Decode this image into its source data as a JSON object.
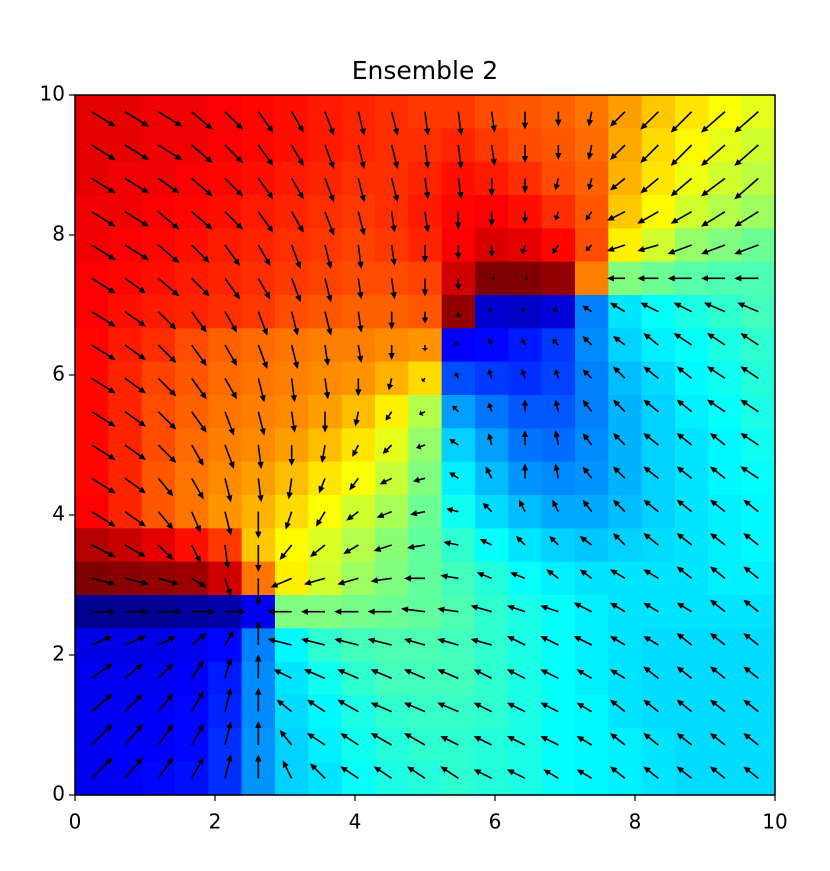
{
  "chart_data": {
    "type": "heatmap-quiver",
    "title": "Ensemble 2",
    "xlim": [
      0,
      10
    ],
    "ylim": [
      0,
      10
    ],
    "xticks": [
      0,
      2,
      4,
      6,
      8,
      10
    ],
    "yticks": [
      0,
      2,
      4,
      6,
      8,
      10
    ],
    "colormap": "jet",
    "zlim": [
      0,
      1
    ],
    "arrow_color": "#000000",
    "z": [
      [
        0.9,
        0.9,
        0.89,
        0.89,
        0.88,
        0.87,
        0.86,
        0.85,
        0.84,
        0.83,
        0.82,
        0.82,
        0.8,
        0.79,
        0.78,
        0.76,
        0.72,
        0.68,
        0.65,
        0.62,
        0.6
      ],
      [
        0.9,
        0.9,
        0.89,
        0.89,
        0.88,
        0.87,
        0.86,
        0.85,
        0.84,
        0.83,
        0.83,
        0.84,
        0.82,
        0.8,
        0.79,
        0.77,
        0.71,
        0.66,
        0.63,
        0.6,
        0.58
      ],
      [
        0.9,
        0.89,
        0.89,
        0.88,
        0.87,
        0.86,
        0.85,
        0.84,
        0.83,
        0.83,
        0.84,
        0.86,
        0.85,
        0.83,
        0.8,
        0.78,
        0.7,
        0.65,
        0.61,
        0.58,
        0.56
      ],
      [
        0.89,
        0.89,
        0.88,
        0.87,
        0.86,
        0.85,
        0.84,
        0.83,
        0.82,
        0.83,
        0.85,
        0.87,
        0.88,
        0.86,
        0.83,
        0.79,
        0.68,
        0.63,
        0.58,
        0.55,
        0.53
      ],
      [
        0.89,
        0.88,
        0.87,
        0.86,
        0.85,
        0.84,
        0.83,
        0.82,
        0.81,
        0.82,
        0.84,
        0.88,
        0.91,
        0.9,
        0.87,
        0.8,
        0.64,
        0.58,
        0.52,
        0.5,
        0.48
      ],
      [
        0.88,
        0.87,
        0.86,
        0.85,
        0.84,
        0.83,
        0.82,
        0.81,
        0.8,
        0.8,
        0.81,
        0.92,
        1.0,
        1.0,
        0.98,
        0.75,
        0.5,
        0.48,
        0.46,
        0.45,
        0.45
      ],
      [
        0.88,
        0.86,
        0.85,
        0.84,
        0.83,
        0.82,
        0.8,
        0.79,
        0.78,
        0.78,
        0.79,
        0.98,
        0.08,
        0.07,
        0.09,
        0.25,
        0.35,
        0.38,
        0.4,
        0.42,
        0.44
      ],
      [
        0.87,
        0.85,
        0.83,
        0.8,
        0.78,
        0.77,
        0.76,
        0.75,
        0.75,
        0.74,
        0.73,
        0.12,
        0.13,
        0.15,
        0.18,
        0.26,
        0.33,
        0.36,
        0.38,
        0.4,
        0.42
      ],
      [
        0.87,
        0.84,
        0.81,
        0.79,
        0.77,
        0.76,
        0.75,
        0.74,
        0.73,
        0.7,
        0.66,
        0.2,
        0.18,
        0.17,
        0.19,
        0.25,
        0.31,
        0.34,
        0.37,
        0.39,
        0.41
      ],
      [
        0.87,
        0.84,
        0.8,
        0.78,
        0.76,
        0.75,
        0.74,
        0.72,
        0.69,
        0.64,
        0.55,
        0.28,
        0.24,
        0.21,
        0.21,
        0.25,
        0.3,
        0.33,
        0.36,
        0.38,
        0.4
      ],
      [
        0.87,
        0.84,
        0.8,
        0.77,
        0.75,
        0.74,
        0.72,
        0.69,
        0.65,
        0.6,
        0.52,
        0.33,
        0.28,
        0.24,
        0.23,
        0.26,
        0.3,
        0.33,
        0.35,
        0.37,
        0.39
      ],
      [
        0.87,
        0.84,
        0.79,
        0.76,
        0.74,
        0.72,
        0.69,
        0.65,
        0.62,
        0.57,
        0.5,
        0.36,
        0.31,
        0.27,
        0.26,
        0.27,
        0.3,
        0.33,
        0.35,
        0.37,
        0.38
      ],
      [
        0.88,
        0.84,
        0.79,
        0.76,
        0.73,
        0.7,
        0.66,
        0.62,
        0.58,
        0.54,
        0.48,
        0.39,
        0.34,
        0.31,
        0.29,
        0.29,
        0.31,
        0.33,
        0.35,
        0.36,
        0.37
      ],
      [
        0.95,
        0.93,
        0.9,
        0.86,
        0.82,
        0.68,
        0.63,
        0.59,
        0.55,
        0.51,
        0.47,
        0.42,
        0.38,
        0.35,
        0.33,
        0.32,
        0.33,
        0.34,
        0.35,
        0.36,
        0.37
      ],
      [
        1.0,
        0.99,
        0.98,
        0.97,
        0.92,
        0.76,
        0.64,
        0.58,
        0.53,
        0.5,
        0.47,
        0.44,
        0.41,
        0.38,
        0.36,
        0.35,
        0.35,
        0.35,
        0.35,
        0.36,
        0.36
      ],
      [
        0.02,
        0.02,
        0.02,
        0.03,
        0.04,
        0.11,
        0.5,
        0.5,
        0.49,
        0.48,
        0.47,
        0.45,
        0.42,
        0.4,
        0.38,
        0.36,
        0.35,
        0.35,
        0.35,
        0.35,
        0.35
      ],
      [
        0.1,
        0.1,
        0.1,
        0.11,
        0.13,
        0.25,
        0.37,
        0.42,
        0.44,
        0.45,
        0.45,
        0.44,
        0.42,
        0.4,
        0.38,
        0.36,
        0.35,
        0.34,
        0.34,
        0.34,
        0.34
      ],
      [
        0.11,
        0.11,
        0.11,
        0.12,
        0.15,
        0.26,
        0.35,
        0.39,
        0.42,
        0.44,
        0.44,
        0.44,
        0.42,
        0.4,
        0.38,
        0.36,
        0.35,
        0.34,
        0.34,
        0.34,
        0.34
      ],
      [
        0.11,
        0.11,
        0.12,
        0.13,
        0.16,
        0.26,
        0.34,
        0.37,
        0.4,
        0.42,
        0.43,
        0.43,
        0.42,
        0.4,
        0.38,
        0.37,
        0.35,
        0.34,
        0.34,
        0.34,
        0.34
      ],
      [
        0.11,
        0.12,
        0.12,
        0.13,
        0.17,
        0.27,
        0.33,
        0.36,
        0.39,
        0.41,
        0.42,
        0.42,
        0.41,
        0.4,
        0.38,
        0.37,
        0.36,
        0.35,
        0.34,
        0.34,
        0.34
      ],
      [
        0.11,
        0.12,
        0.13,
        0.14,
        0.17,
        0.27,
        0.33,
        0.35,
        0.38,
        0.4,
        0.41,
        0.42,
        0.41,
        0.4,
        0.38,
        0.37,
        0.36,
        0.35,
        0.34,
        0.34,
        0.34
      ]
    ],
    "u": [
      [
        0.8,
        0.8,
        0.8,
        0.7,
        0.6,
        0.5,
        0.4,
        0.3,
        0.2,
        0.2,
        0.1,
        0.1,
        0.1,
        0.0,
        0.0,
        -0.1,
        -0.5,
        -0.6,
        -0.7,
        -0.8,
        -0.8
      ],
      [
        0.8,
        0.8,
        0.8,
        0.7,
        0.6,
        0.5,
        0.4,
        0.3,
        0.2,
        0.2,
        0.1,
        0.1,
        0.1,
        0.0,
        0.0,
        -0.1,
        -0.5,
        -0.6,
        -0.7,
        -0.8,
        -0.8
      ],
      [
        0.8,
        0.8,
        0.7,
        0.7,
        0.6,
        0.5,
        0.4,
        0.3,
        0.2,
        0.2,
        0.1,
        0.1,
        0.0,
        0.0,
        -0.1,
        -0.1,
        -0.5,
        -0.6,
        -0.7,
        -0.8,
        -0.8
      ],
      [
        0.8,
        0.8,
        0.7,
        0.7,
        0.6,
        0.5,
        0.4,
        0.3,
        0.2,
        0.1,
        0.1,
        0.0,
        0.0,
        0.0,
        -0.1,
        -0.2,
        -0.6,
        -0.7,
        -0.7,
        -0.8,
        -0.8
      ],
      [
        0.8,
        0.8,
        0.7,
        0.6,
        0.5,
        0.4,
        0.3,
        0.2,
        0.1,
        0.1,
        0.0,
        0.0,
        0.0,
        -0.1,
        -0.2,
        -0.2,
        -0.6,
        -0.7,
        -0.8,
        -0.8,
        -0.8
      ],
      [
        0.8,
        0.7,
        0.7,
        0.6,
        0.5,
        0.4,
        0.3,
        0.2,
        0.1,
        0.1,
        0.0,
        0.0,
        0.1,
        0.1,
        0.0,
        0.0,
        -0.6,
        -0.7,
        -0.8,
        -0.8,
        -0.8
      ],
      [
        0.8,
        0.7,
        0.6,
        0.5,
        0.4,
        0.3,
        0.2,
        0.2,
        0.1,
        0.0,
        0.0,
        0.0,
        -0.1,
        -0.1,
        -0.2,
        -0.3,
        -0.5,
        -0.6,
        -0.6,
        -0.7,
        -0.7
      ],
      [
        0.8,
        0.7,
        0.6,
        0.5,
        0.4,
        0.3,
        0.2,
        0.1,
        0.1,
        0.0,
        0.0,
        -0.1,
        -0.1,
        -0.1,
        -0.2,
        -0.3,
        -0.4,
        -0.5,
        -0.6,
        -0.6,
        -0.6
      ],
      [
        0.8,
        0.7,
        0.6,
        0.5,
        0.4,
        0.2,
        0.1,
        0.1,
        0.0,
        -0.1,
        -0.1,
        -0.1,
        -0.1,
        -0.1,
        -0.1,
        -0.3,
        -0.4,
        -0.5,
        -0.5,
        -0.6,
        -0.6
      ],
      [
        0.8,
        0.7,
        0.6,
        0.5,
        0.3,
        0.2,
        0.1,
        0.0,
        -0.1,
        -0.2,
        -0.2,
        -0.2,
        -0.1,
        0.0,
        -0.1,
        -0.3,
        -0.4,
        -0.5,
        -0.5,
        -0.6,
        -0.6
      ],
      [
        0.8,
        0.7,
        0.6,
        0.4,
        0.3,
        0.1,
        0.0,
        -0.1,
        -0.2,
        -0.3,
        -0.3,
        -0.3,
        -0.1,
        0.0,
        -0.1,
        -0.3,
        -0.4,
        -0.5,
        -0.5,
        -0.5,
        -0.6
      ],
      [
        0.8,
        0.7,
        0.5,
        0.4,
        0.2,
        0.1,
        -0.1,
        -0.2,
        -0.3,
        -0.4,
        -0.4,
        -0.3,
        -0.2,
        0.0,
        -0.1,
        -0.3,
        -0.4,
        -0.5,
        -0.5,
        -0.5,
        -0.6
      ],
      [
        0.8,
        0.7,
        0.5,
        0.3,
        0.2,
        0.0,
        -0.2,
        -0.3,
        -0.4,
        -0.5,
        -0.5,
        -0.4,
        -0.3,
        -0.2,
        -0.2,
        -0.3,
        -0.4,
        -0.5,
        -0.5,
        -0.5,
        -0.5
      ],
      [
        0.8,
        0.7,
        0.5,
        0.3,
        0.1,
        0.0,
        -0.4,
        -0.5,
        -0.5,
        -0.6,
        -0.6,
        -0.5,
        -0.4,
        -0.3,
        -0.3,
        -0.4,
        -0.4,
        -0.5,
        -0.5,
        -0.5,
        -0.5
      ],
      [
        0.8,
        0.8,
        0.7,
        0.5,
        0.2,
        0.0,
        -0.7,
        -0.7,
        -0.7,
        -0.7,
        -0.7,
        -0.6,
        -0.5,
        -0.5,
        -0.4,
        -0.4,
        -0.5,
        -0.5,
        -0.5,
        -0.5,
        -0.5
      ],
      [
        0.8,
        0.8,
        0.8,
        0.8,
        0.7,
        0.0,
        -0.8,
        -0.8,
        -0.8,
        -0.8,
        -0.8,
        -0.7,
        -0.7,
        -0.6,
        -0.6,
        -0.6,
        -0.5,
        -0.5,
        -0.5,
        -0.5,
        -0.5
      ],
      [
        0.7,
        0.7,
        0.6,
        0.5,
        0.3,
        0.0,
        -0.8,
        -0.8,
        -0.8,
        -0.8,
        -0.7,
        -0.7,
        -0.7,
        -0.6,
        -0.6,
        -0.6,
        -0.5,
        -0.5,
        -0.5,
        -0.5,
        -0.5
      ],
      [
        0.7,
        0.6,
        0.5,
        0.4,
        0.2,
        0.0,
        -0.6,
        -0.7,
        -0.7,
        -0.7,
        -0.7,
        -0.7,
        -0.6,
        -0.6,
        -0.6,
        -0.5,
        -0.5,
        -0.5,
        -0.5,
        -0.5,
        -0.5
      ],
      [
        0.7,
        0.6,
        0.5,
        0.4,
        0.2,
        0.0,
        -0.5,
        -0.6,
        -0.7,
        -0.7,
        -0.7,
        -0.7,
        -0.6,
        -0.6,
        -0.6,
        -0.5,
        -0.5,
        -0.5,
        -0.5,
        -0.5,
        -0.5
      ],
      [
        0.7,
        0.6,
        0.5,
        0.4,
        0.2,
        0.0,
        -0.4,
        -0.6,
        -0.6,
        -0.7,
        -0.7,
        -0.6,
        -0.6,
        -0.6,
        -0.6,
        -0.5,
        -0.5,
        -0.5,
        -0.5,
        -0.5,
        -0.5
      ],
      [
        0.7,
        0.6,
        0.5,
        0.4,
        0.2,
        0.0,
        -0.3,
        -0.5,
        -0.6,
        -0.6,
        -0.6,
        -0.6,
        -0.6,
        -0.6,
        -0.5,
        -0.5,
        -0.5,
        -0.5,
        -0.5,
        -0.5,
        -0.5
      ]
    ],
    "v": [
      [
        -0.5,
        -0.5,
        -0.5,
        -0.6,
        -0.6,
        -0.7,
        -0.7,
        -0.8,
        -0.8,
        -0.8,
        -0.8,
        -0.8,
        -0.7,
        -0.6,
        -0.5,
        -0.5,
        -0.5,
        -0.6,
        -0.7,
        -0.7,
        -0.7
      ],
      [
        -0.5,
        -0.5,
        -0.5,
        -0.6,
        -0.6,
        -0.7,
        -0.7,
        -0.8,
        -0.8,
        -0.8,
        -0.8,
        -0.8,
        -0.7,
        -0.6,
        -0.5,
        -0.5,
        -0.5,
        -0.6,
        -0.7,
        -0.7,
        -0.7
      ],
      [
        -0.5,
        -0.5,
        -0.5,
        -0.6,
        -0.6,
        -0.7,
        -0.7,
        -0.8,
        -0.8,
        -0.8,
        -0.7,
        -0.7,
        -0.6,
        -0.5,
        -0.4,
        -0.4,
        -0.4,
        -0.5,
        -0.6,
        -0.6,
        -0.7
      ],
      [
        -0.5,
        -0.5,
        -0.6,
        -0.6,
        -0.6,
        -0.7,
        -0.7,
        -0.8,
        -0.8,
        -0.7,
        -0.7,
        -0.6,
        -0.5,
        -0.4,
        -0.3,
        -0.3,
        -0.3,
        -0.4,
        -0.4,
        -0.5,
        -0.5
      ],
      [
        -0.5,
        -0.5,
        -0.6,
        -0.6,
        -0.7,
        -0.7,
        -0.8,
        -0.8,
        -0.8,
        -0.7,
        -0.6,
        -0.5,
        -0.4,
        -0.3,
        -0.3,
        -0.2,
        -0.2,
        -0.2,
        -0.3,
        -0.3,
        -0.3
      ],
      [
        -0.5,
        -0.5,
        -0.6,
        -0.6,
        -0.7,
        -0.7,
        -0.8,
        -0.8,
        -0.7,
        -0.7,
        -0.6,
        -0.4,
        0.0,
        0.0,
        0.0,
        0.0,
        0.0,
        0.0,
        0.0,
        0.0,
        0.0
      ],
      [
        -0.5,
        -0.5,
        -0.6,
        -0.7,
        -0.7,
        -0.8,
        -0.8,
        -0.8,
        -0.7,
        -0.6,
        -0.4,
        -0.2,
        0.1,
        0.1,
        0.1,
        0.2,
        0.3,
        0.3,
        0.3,
        0.3,
        0.3
      ],
      [
        -0.5,
        -0.5,
        -0.6,
        -0.7,
        -0.7,
        -0.8,
        -0.8,
        -0.7,
        -0.6,
        -0.5,
        -0.2,
        0.1,
        0.2,
        0.2,
        0.2,
        0.3,
        0.3,
        0.4,
        0.4,
        0.4,
        0.4
      ],
      [
        -0.5,
        -0.5,
        -0.6,
        -0.7,
        -0.7,
        -0.8,
        -0.8,
        -0.7,
        -0.6,
        -0.4,
        -0.1,
        0.2,
        0.3,
        0.3,
        0.3,
        0.3,
        0.4,
        0.4,
        0.4,
        0.4,
        0.4
      ],
      [
        -0.5,
        -0.5,
        -0.6,
        -0.7,
        -0.8,
        -0.8,
        -0.7,
        -0.7,
        -0.5,
        -0.3,
        -0.1,
        0.2,
        0.3,
        0.4,
        0.4,
        0.4,
        0.4,
        0.4,
        0.4,
        0.4,
        0.4
      ],
      [
        -0.5,
        -0.5,
        -0.6,
        -0.7,
        -0.8,
        -0.8,
        -0.7,
        -0.6,
        -0.4,
        -0.3,
        -0.1,
        0.2,
        0.4,
        0.5,
        0.5,
        0.4,
        0.4,
        0.4,
        0.4,
        0.4,
        0.4
      ],
      [
        -0.5,
        -0.5,
        -0.6,
        -0.7,
        -0.8,
        -0.8,
        -0.7,
        -0.5,
        -0.4,
        -0.2,
        -0.1,
        0.2,
        0.4,
        0.5,
        0.5,
        0.4,
        0.4,
        0.4,
        0.4,
        0.4,
        0.4
      ],
      [
        -0.5,
        -0.5,
        -0.6,
        -0.7,
        -0.8,
        -0.9,
        -0.6,
        -0.5,
        -0.3,
        -0.2,
        -0.1,
        0.1,
        0.3,
        0.4,
        0.4,
        0.4,
        0.4,
        0.4,
        0.4,
        0.4,
        0.4
      ],
      [
        -0.4,
        -0.4,
        -0.5,
        -0.6,
        -0.8,
        -0.9,
        -0.5,
        -0.4,
        -0.3,
        -0.2,
        -0.1,
        0.1,
        0.2,
        0.3,
        0.3,
        0.3,
        0.4,
        0.4,
        0.4,
        0.4,
        0.4
      ],
      [
        -0.2,
        -0.2,
        -0.2,
        -0.3,
        -0.6,
        -0.9,
        -0.3,
        -0.2,
        -0.2,
        -0.1,
        0.0,
        0.1,
        0.2,
        0.2,
        0.3,
        0.3,
        0.3,
        0.3,
        0.4,
        0.4,
        0.4
      ],
      [
        0.0,
        0.0,
        0.0,
        0.0,
        0.0,
        0.0,
        0.0,
        0.0,
        0.0,
        0.0,
        0.1,
        0.1,
        0.2,
        0.2,
        0.2,
        0.3,
        0.3,
        0.3,
        0.3,
        0.4,
        0.4
      ],
      [
        0.3,
        0.3,
        0.3,
        0.4,
        0.5,
        0.8,
        0.2,
        0.2,
        0.2,
        0.2,
        0.2,
        0.2,
        0.2,
        0.3,
        0.3,
        0.3,
        0.3,
        0.3,
        0.4,
        0.4,
        0.4
      ],
      [
        0.5,
        0.5,
        0.5,
        0.6,
        0.7,
        0.8,
        0.3,
        0.3,
        0.3,
        0.3,
        0.3,
        0.3,
        0.3,
        0.3,
        0.3,
        0.3,
        0.3,
        0.4,
        0.4,
        0.4,
        0.4
      ],
      [
        0.6,
        0.6,
        0.6,
        0.7,
        0.8,
        0.8,
        0.4,
        0.4,
        0.4,
        0.3,
        0.3,
        0.3,
        0.3,
        0.3,
        0.3,
        0.3,
        0.4,
        0.4,
        0.4,
        0.4,
        0.4
      ],
      [
        0.7,
        0.7,
        0.7,
        0.7,
        0.8,
        0.8,
        0.5,
        0.4,
        0.4,
        0.4,
        0.4,
        0.3,
        0.3,
        0.3,
        0.3,
        0.3,
        0.4,
        0.4,
        0.4,
        0.4,
        0.4
      ],
      [
        0.7,
        0.7,
        0.7,
        0.7,
        0.8,
        0.8,
        0.6,
        0.5,
        0.4,
        0.4,
        0.4,
        0.4,
        0.3,
        0.3,
        0.3,
        0.3,
        0.4,
        0.4,
        0.4,
        0.4,
        0.4
      ]
    ]
  }
}
